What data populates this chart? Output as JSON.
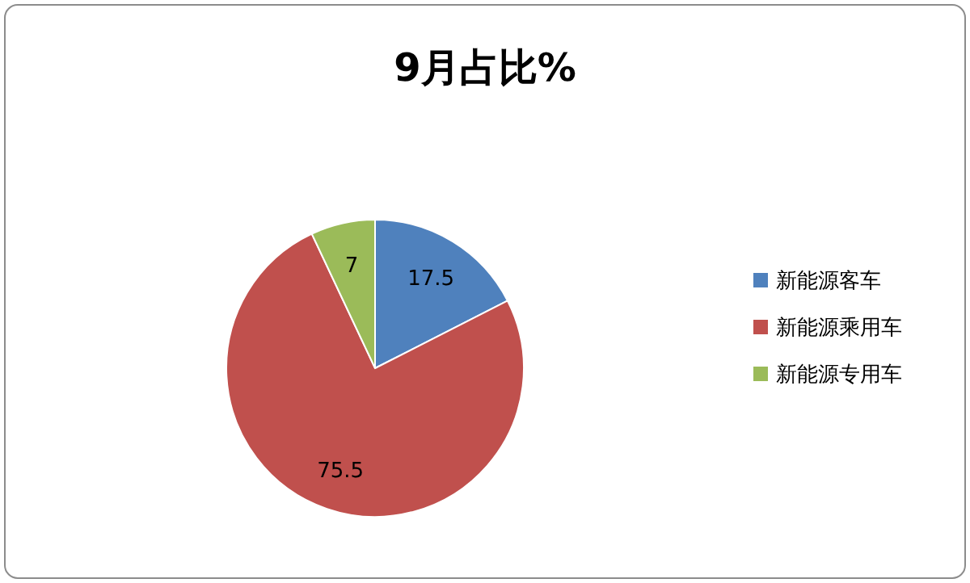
{
  "chart_data": {
    "type": "pie",
    "title": "9月占比%",
    "categories": [
      "新能源客车",
      "新能源乘用车",
      "新能源专用车"
    ],
    "values": [
      17.5,
      75.5,
      7
    ],
    "colors": [
      "#4f81bd",
      "#c0504d",
      "#9bbb59"
    ],
    "data_labels": true,
    "legend": "right"
  }
}
